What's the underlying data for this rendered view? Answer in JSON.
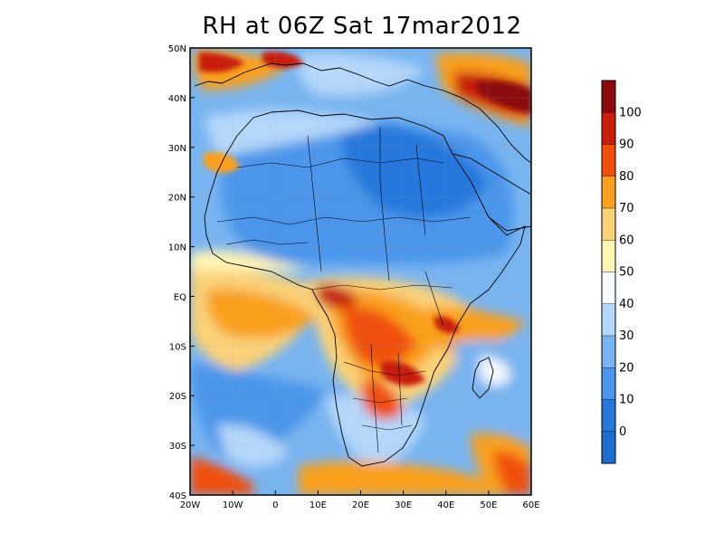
{
  "title": "RH at 06Z Sat 17mar2012",
  "map": {
    "lon_range": [
      -20,
      60
    ],
    "lat_range": [
      -40,
      50
    ],
    "lon_ticks": [
      "20W",
      "10W",
      "0",
      "10E",
      "20E",
      "30E",
      "40E",
      "50E",
      "60E"
    ],
    "lat_ticks": [
      "50N",
      "40N",
      "30N",
      "20N",
      "10N",
      "EQ",
      "10S",
      "20S",
      "30S",
      "40S"
    ]
  },
  "colorbar": {
    "labels": [
      "100",
      "90",
      "80",
      "70",
      "60",
      "50",
      "40",
      "30",
      "20",
      "10",
      "0"
    ],
    "colors": [
      "#8c0a0a",
      "#c81e0a",
      "#f0500a",
      "#faa01e",
      "#fad278",
      "#fff5b4",
      "#f5fbff",
      "#b4d7fa",
      "#78b4f0",
      "#4b96eb",
      "#2878dc",
      "#1e6ed2"
    ]
  },
  "palette": {
    "red": "#c81e0a",
    "orange": "#f0781e",
    "lightorange": "#faa01e",
    "yellow": "#fad278",
    "paleyellow": "#fff5b4",
    "white": "#f5fbff",
    "lightblue": "#b4d7fa",
    "blue": "#78b4f0",
    "midblue": "#4b96eb",
    "deepblue": "#2878dc"
  }
}
